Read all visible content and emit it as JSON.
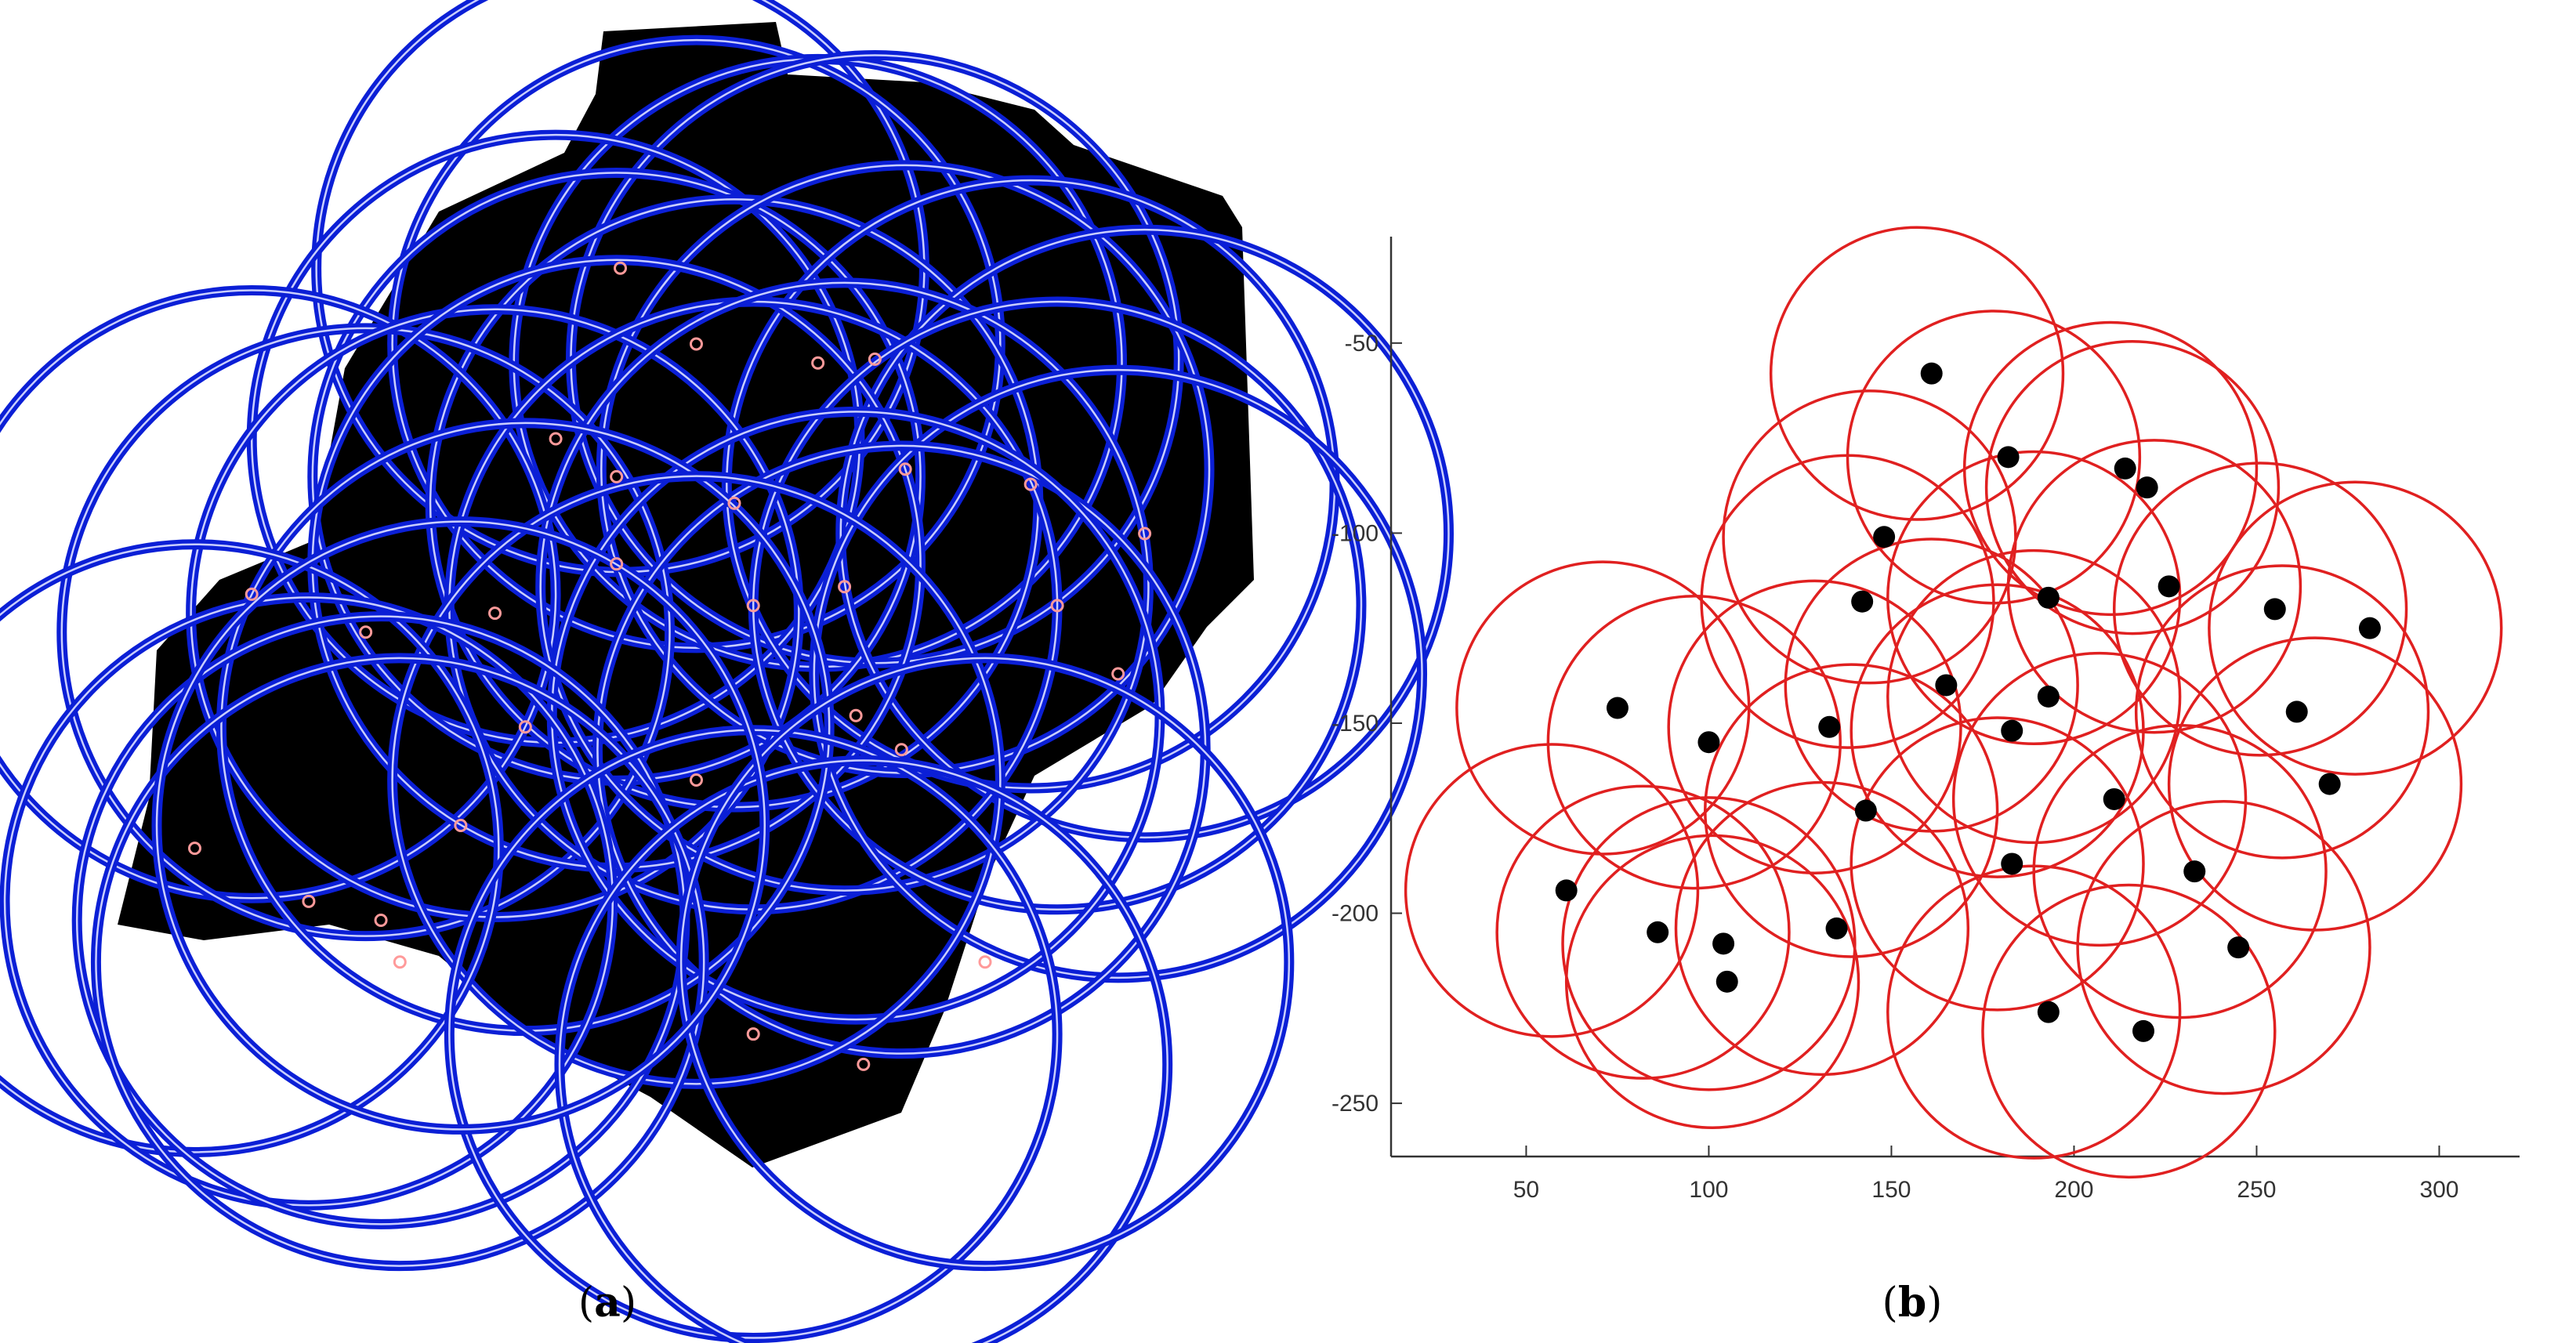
{
  "captions": {
    "a": "a",
    "b": "b"
  },
  "colors": {
    "panel_a_map": "#000000",
    "panel_a_circle": "#0b1fd6",
    "panel_a_circle_inner": "#c9ceff",
    "panel_a_point": "#ff9a9a",
    "panel_b_circle": "#e02020",
    "panel_b_point": "#000000",
    "axis": "#333333"
  },
  "chart_data": [
    {
      "type": "scatter",
      "panel": "a",
      "title": "",
      "xlabel": "",
      "ylabel": "",
      "axes_visible": false,
      "description_of_marks": "coverage circles drawn over a black map region; each circle has a small center point",
      "circle_radius": 80,
      "xlim": [
        0,
        330
      ],
      "ylim": [
        0,
        310
      ],
      "centers": [
        [
          155,
          48
        ],
        [
          175,
          68
        ],
        [
          207,
          73
        ],
        [
          222,
          72
        ],
        [
          138,
          93
        ],
        [
          154,
          103
        ],
        [
          185,
          110
        ],
        [
          230,
          101
        ],
        [
          263,
          105
        ],
        [
          293,
          118
        ],
        [
          58,
          134
        ],
        [
          88,
          144
        ],
        [
          122,
          139
        ],
        [
          154,
          126
        ],
        [
          190,
          137
        ],
        [
          214,
          132
        ],
        [
          270,
          137
        ],
        [
          286,
          155
        ],
        [
          229,
          175
        ],
        [
          217,
          166
        ],
        [
          130,
          169
        ],
        [
          175,
          183
        ],
        [
          43,
          201
        ],
        [
          73,
          215
        ],
        [
          92,
          220
        ],
        [
          97,
          231
        ],
        [
          190,
          250
        ],
        [
          219,
          258
        ],
        [
          251,
          231
        ],
        [
          113,
          195
        ]
      ]
    },
    {
      "type": "scatter",
      "panel": "b",
      "title": "",
      "xlabel": "",
      "ylabel": "",
      "xlim": [
        13,
        322
      ],
      "ylim": [
        -264,
        -22
      ],
      "x_ticks": [
        50,
        100,
        150,
        200,
        250,
        300
      ],
      "y_ticks": [
        -50,
        -100,
        -150,
        -200,
        -250
      ],
      "y_reversed": true,
      "grid": false,
      "legend": "none",
      "circle_radius": 40,
      "points": [
        [
          161,
          -58
        ],
        [
          182,
          -80
        ],
        [
          214,
          -83
        ],
        [
          220,
          -88
        ],
        [
          148,
          -101
        ],
        [
          226,
          -114
        ],
        [
          193,
          -117
        ],
        [
          142,
          -118
        ],
        [
          255,
          -120
        ],
        [
          281,
          -125
        ],
        [
          75,
          -146
        ],
        [
          100,
          -155
        ],
        [
          133,
          -151
        ],
        [
          165,
          -140
        ],
        [
          193,
          -143
        ],
        [
          183,
          -152
        ],
        [
          261,
          -147
        ],
        [
          270,
          -166
        ],
        [
          211,
          -170
        ],
        [
          143,
          -173
        ],
        [
          183,
          -187
        ],
        [
          233,
          -189
        ],
        [
          61,
          -194
        ],
        [
          86,
          -205
        ],
        [
          104,
          -208
        ],
        [
          105,
          -218
        ],
        [
          135,
          -204
        ],
        [
          245,
          -209
        ],
        [
          193,
          -226
        ],
        [
          219,
          -231
        ]
      ],
      "circle_centers": [
        [
          157,
          -58
        ],
        [
          178,
          -80
        ],
        [
          210,
          -83
        ],
        [
          216,
          -88
        ],
        [
          144,
          -101
        ],
        [
          222,
          -114
        ],
        [
          189,
          -117
        ],
        [
          138,
          -118
        ],
        [
          251,
          -120
        ],
        [
          277,
          -125
        ],
        [
          71,
          -146
        ],
        [
          96,
          -155
        ],
        [
          129,
          -151
        ],
        [
          161,
          -140
        ],
        [
          189,
          -143
        ],
        [
          179,
          -152
        ],
        [
          257,
          -147
        ],
        [
          266,
          -166
        ],
        [
          207,
          -170
        ],
        [
          139,
          -173
        ],
        [
          179,
          -187
        ],
        [
          229,
          -189
        ],
        [
          57,
          -194
        ],
        [
          82,
          -205
        ],
        [
          100,
          -208
        ],
        [
          101,
          -218
        ],
        [
          131,
          -204
        ],
        [
          241,
          -209
        ],
        [
          189,
          -226
        ],
        [
          215,
          -231
        ]
      ]
    }
  ]
}
